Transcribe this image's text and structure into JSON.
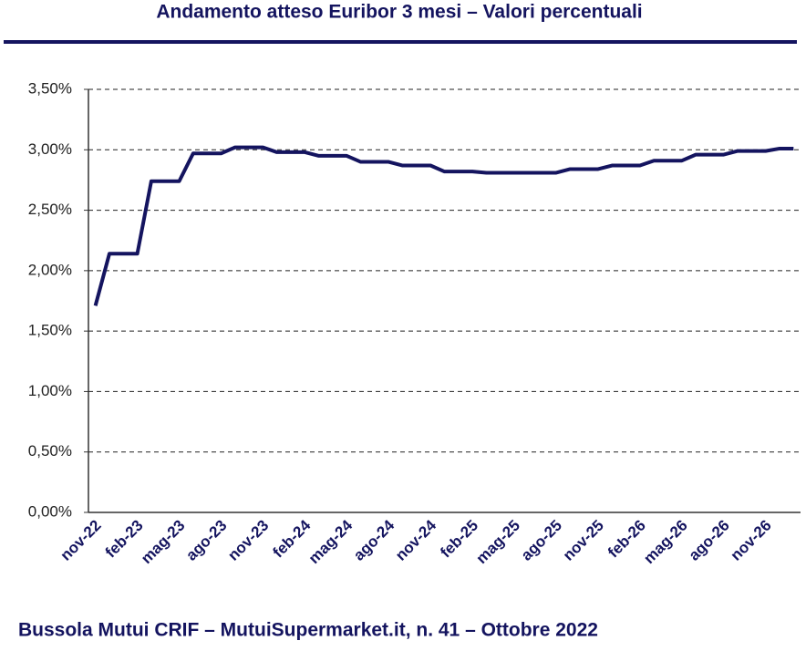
{
  "chart_data": {
    "type": "line",
    "title": "Andamento atteso Euribor 3 mesi – Valori percentuali",
    "footer": "Bussola Mutui CRIF – MutuiSupermarket.it, n. 41 – Ottobre 2022",
    "categories": [
      "nov-22",
      null,
      null,
      "feb-23",
      null,
      null,
      "mag-23",
      null,
      null,
      "ago-23",
      null,
      null,
      "nov-23",
      null,
      null,
      "feb-24",
      null,
      null,
      "mag-24",
      null,
      null,
      "ago-24",
      null,
      null,
      "nov-24",
      null,
      null,
      "feb-25",
      null,
      null,
      "mag-25",
      null,
      null,
      "ago-25",
      null,
      null,
      "nov-25",
      null,
      null,
      "feb-26",
      null,
      null,
      "mag-26",
      null,
      null,
      "ago-26",
      null,
      null,
      "nov-26",
      null,
      null
    ],
    "series": [
      {
        "name": "Euribor 3 mesi",
        "color": "#14145f",
        "values": [
          1.71,
          2.14,
          2.14,
          2.14,
          2.74,
          2.74,
          2.74,
          2.97,
          2.97,
          2.97,
          3.02,
          3.02,
          3.02,
          2.98,
          2.98,
          2.98,
          2.95,
          2.95,
          2.95,
          2.9,
          2.9,
          2.9,
          2.87,
          2.87,
          2.87,
          2.82,
          2.82,
          2.82,
          2.81,
          2.81,
          2.81,
          2.81,
          2.81,
          2.81,
          2.84,
          2.84,
          2.84,
          2.87,
          2.87,
          2.87,
          2.91,
          2.91,
          2.91,
          2.96,
          2.96,
          2.96,
          2.99,
          2.99,
          2.99,
          3.01,
          3.01
        ]
      }
    ],
    "ylim": [
      0,
      3.5
    ],
    "yticks": [
      {
        "value": 0,
        "label": "0,00%"
      },
      {
        "value": 0.5,
        "label": "0,50%"
      },
      {
        "value": 1,
        "label": "1,00%"
      },
      {
        "value": 1.5,
        "label": "1,50%"
      },
      {
        "value": 2,
        "label": "2,00%"
      },
      {
        "value": 2.5,
        "label": "2,50%"
      },
      {
        "value": 3,
        "label": "3,00%"
      },
      {
        "value": 3.5,
        "label": "3,50%"
      }
    ],
    "grid": true
  }
}
